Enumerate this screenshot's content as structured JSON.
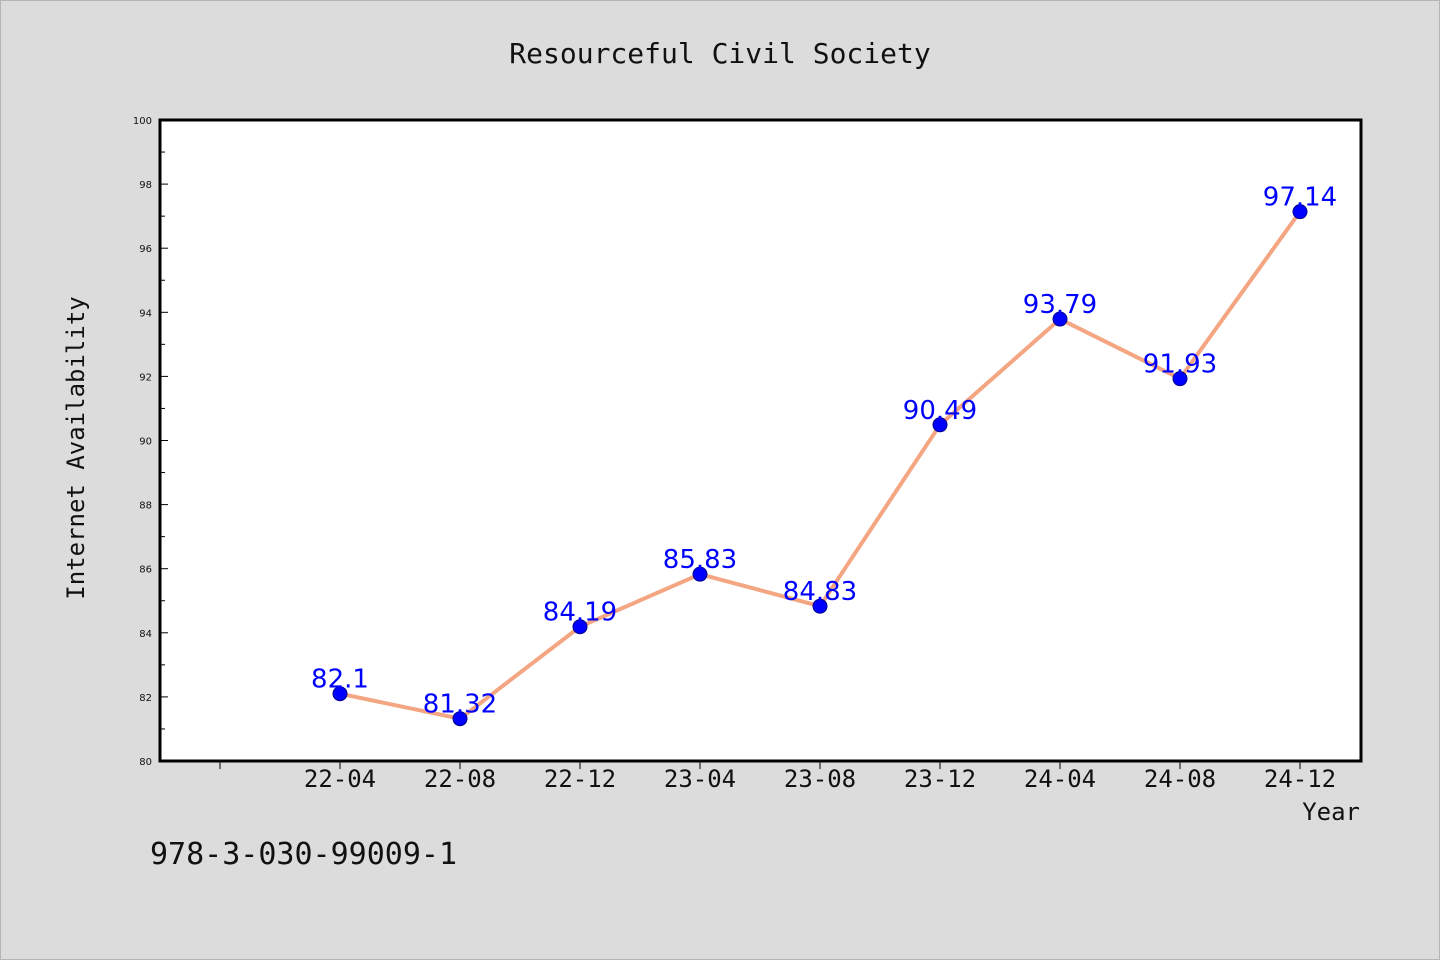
{
  "footer_text": "978-3-030-99009-1",
  "colors": {
    "background": "#dcdcdc",
    "plot_bg": "#ffffff",
    "line": "#f4a582",
    "marker": "#0000ff",
    "label": "#0000ff"
  },
  "chart_data": {
    "type": "line",
    "title": "Resourceful Civil Society",
    "xlabel": "Year",
    "ylabel": "Internet Availability",
    "ylim": [
      80,
      100
    ],
    "y_ticks": [
      80,
      82,
      84,
      86,
      88,
      90,
      92,
      94,
      96,
      98,
      100
    ],
    "categories": [
      "22-04",
      "22-08",
      "22-12",
      "23-04",
      "23-08",
      "23-12",
      "24-04",
      "24-08",
      "24-12"
    ],
    "values": [
      82.1,
      81.32,
      84.19,
      85.83,
      84.83,
      90.49,
      93.79,
      91.93,
      97.14
    ],
    "data_labels": [
      "82.1",
      "81.32",
      "84.19",
      "85.83",
      "84.83",
      "90.49",
      "93.79",
      "91.93",
      "97.14"
    ],
    "grid": false,
    "legend": "none"
  }
}
